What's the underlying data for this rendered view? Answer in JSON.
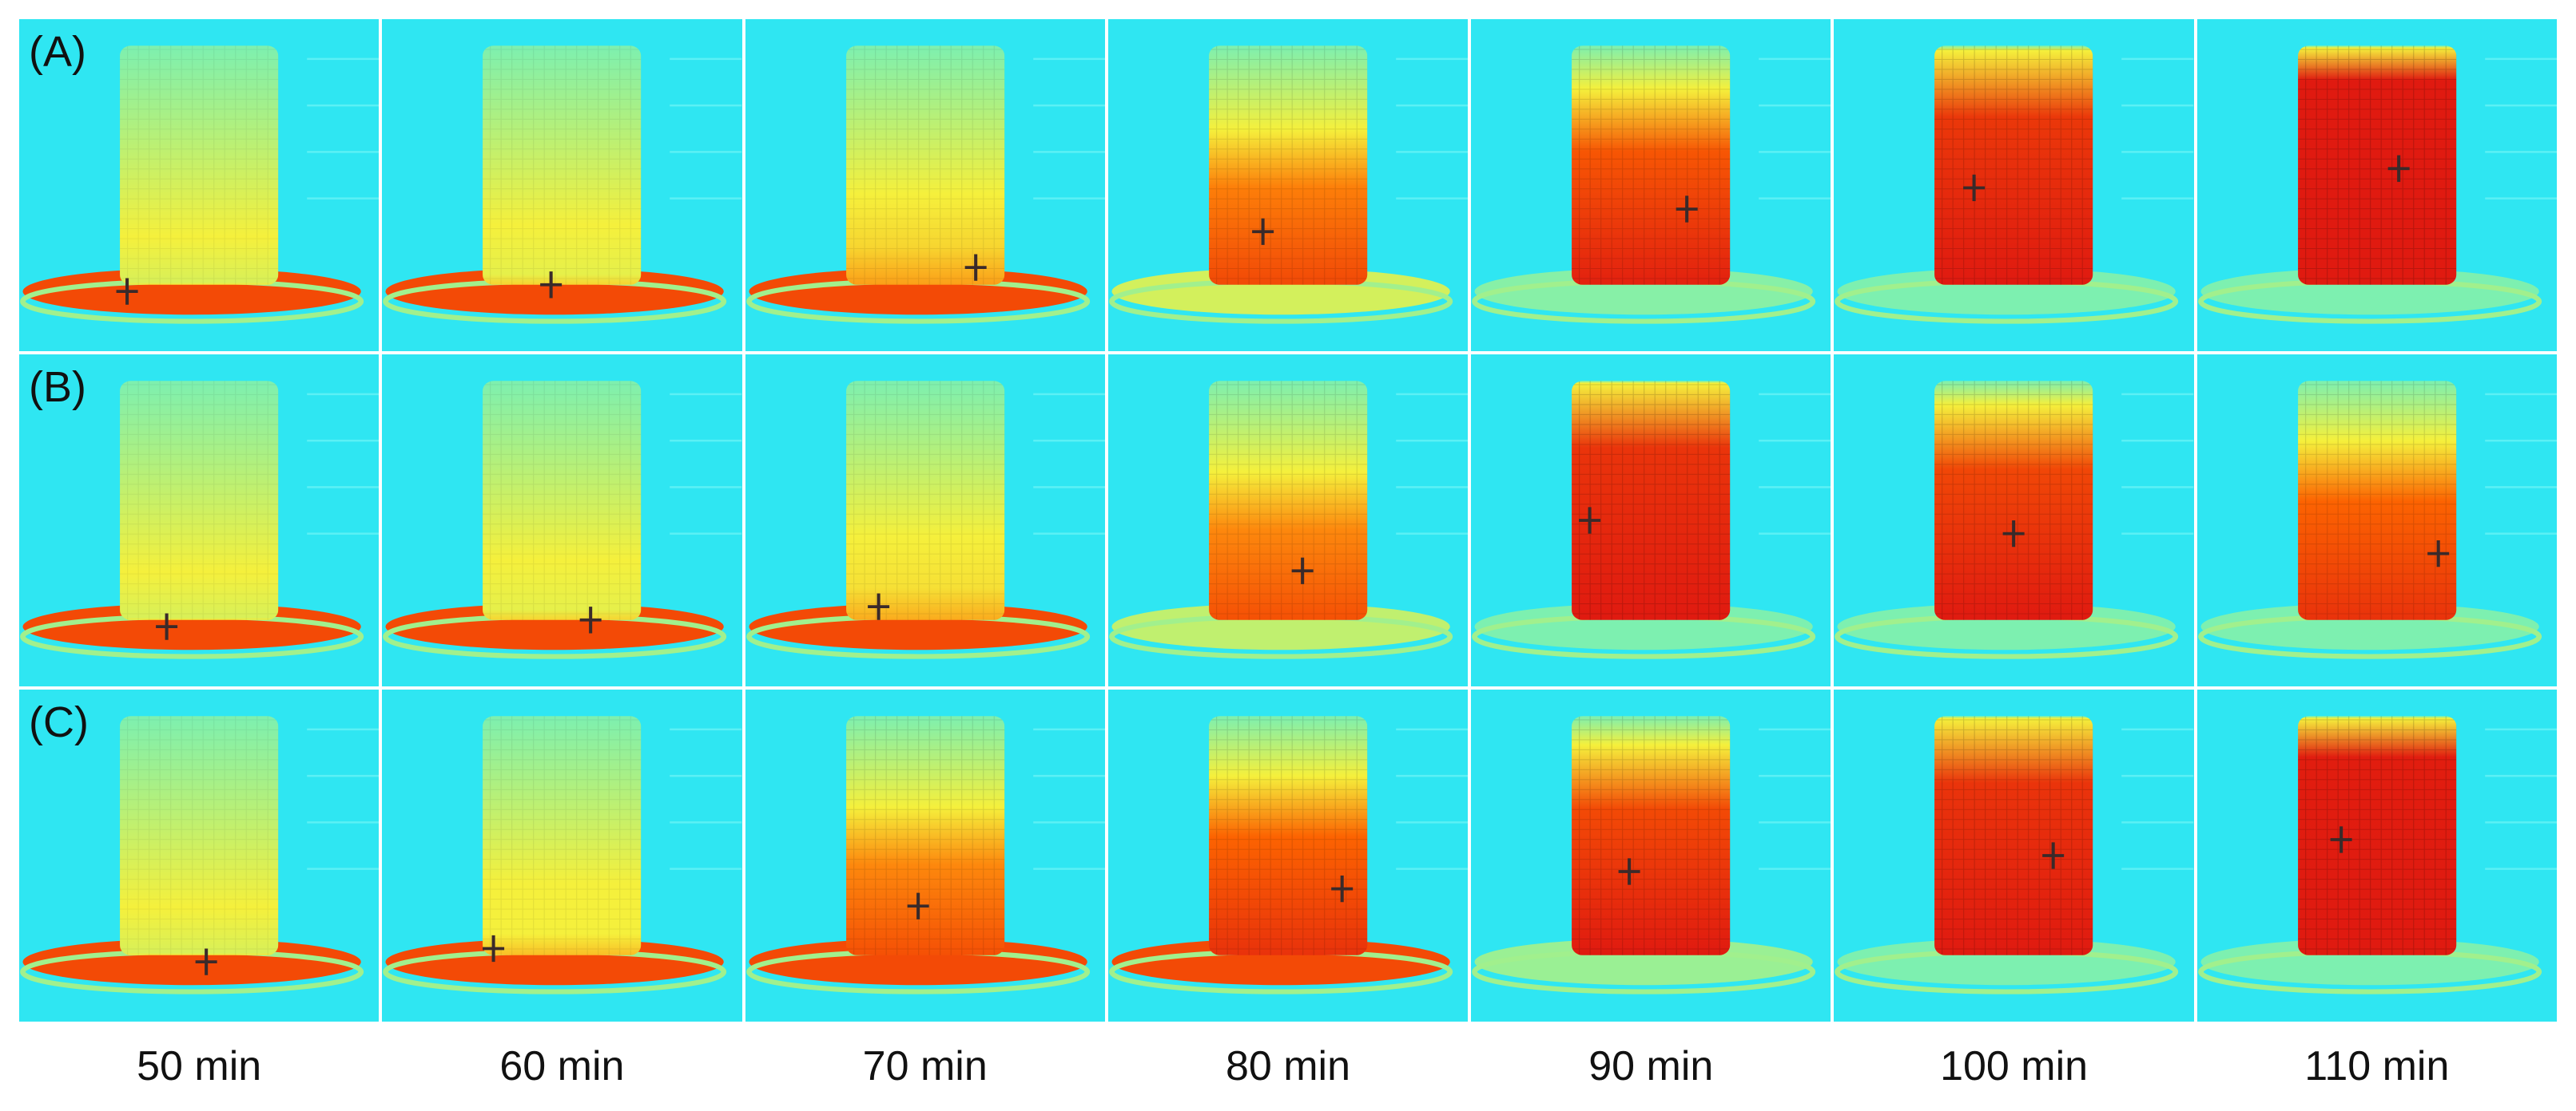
{
  "rows": [
    {
      "label": "(A)",
      "heat": [
        0.0,
        0.05,
        0.18,
        0.45,
        0.62,
        0.78,
        0.95
      ],
      "plate_hot": [
        1,
        1,
        1,
        0.45,
        0.05,
        0.0,
        0.0
      ]
    },
    {
      "label": "(B)",
      "heat": [
        0.0,
        0.05,
        0.15,
        0.42,
        0.8,
        0.7,
        0.55
      ],
      "plate_hot": [
        1,
        1,
        1,
        0.35,
        0.0,
        0.0,
        0.0
      ]
    },
    {
      "label": "(C)",
      "heat": [
        0.0,
        0.1,
        0.42,
        0.55,
        0.68,
        0.8,
        0.92
      ],
      "plate_hot": [
        1,
        1,
        1,
        0.6,
        0.15,
        0.0,
        0.0
      ]
    }
  ],
  "times": [
    "50 min",
    "60 min",
    "70 min",
    "80 min",
    "90 min",
    "100 min",
    "110 min"
  ],
  "colors": {
    "background": "#2fe6f2",
    "cool": "#7df0b0",
    "warm": "#f5f03c",
    "hot": "#ff6a00",
    "hottest": "#e01a10"
  }
}
